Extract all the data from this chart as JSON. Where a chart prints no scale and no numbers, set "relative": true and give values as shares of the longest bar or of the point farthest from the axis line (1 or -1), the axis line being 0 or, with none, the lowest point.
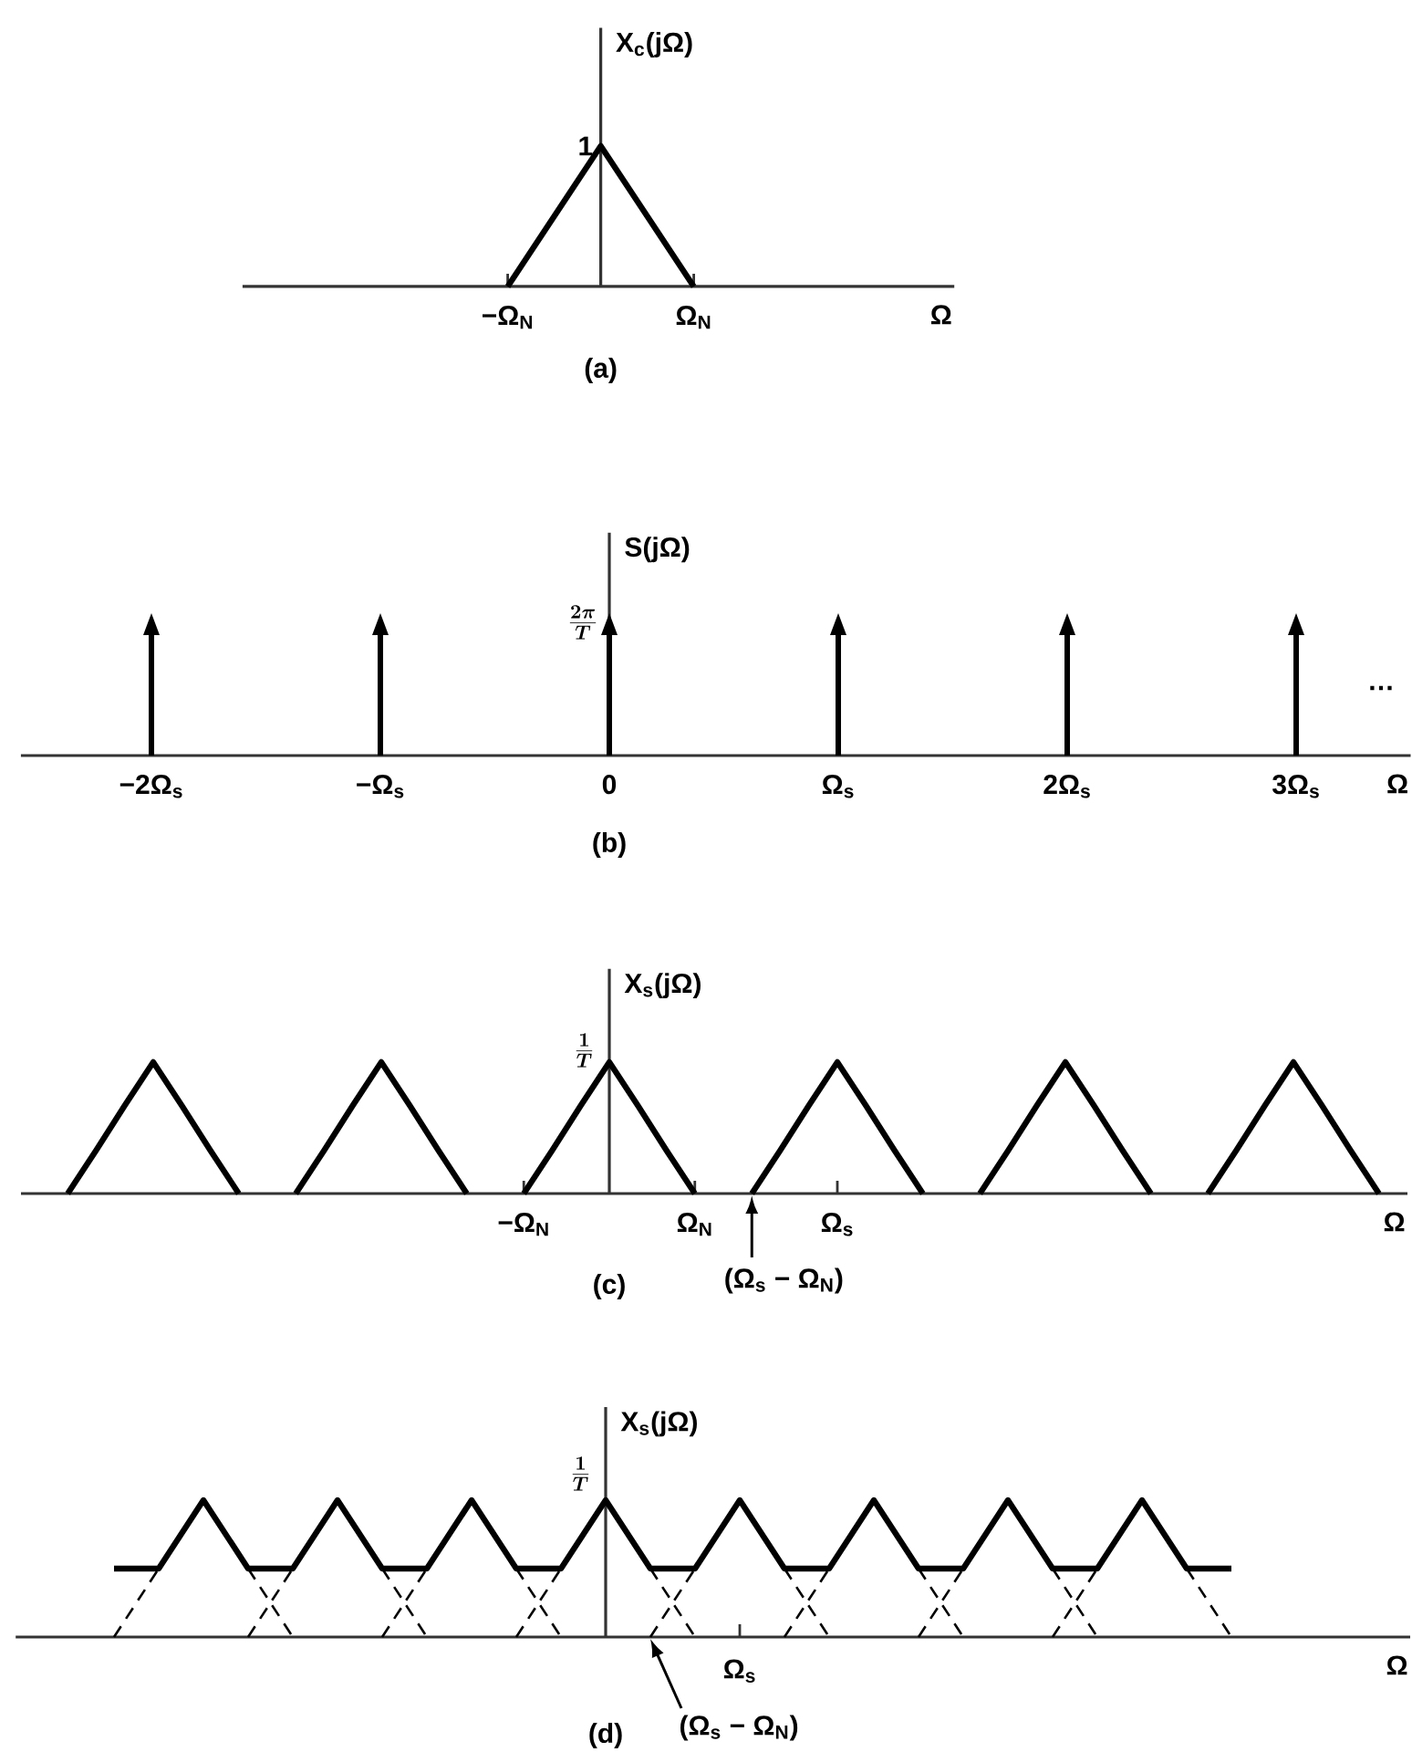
{
  "chart_data": [
    {
      "type": "line",
      "title": "(a)",
      "xlabel": "Ω",
      "ylabel": "X$_{c}$(jΩ)",
      "relative": true,
      "categories": [
        null,
        null,
        "−Ω$_{N}$",
        null,
        "Ω$_{N}$",
        null,
        null
      ],
      "values": [
        null,
        null,
        0,
        1,
        0,
        null,
        null
      ],
      "color": "#000000",
      "annotations": [
        "1"
      ]
    },
    {
      "type": "bar",
      "title": "(b)",
      "xlabel": "Ω",
      "ylabel": "S(jΩ)",
      "relative": true,
      "categories": [
        "−2Ω$_{s}$",
        "−Ω$_{s}$",
        "0",
        "Ω$_{s}$",
        "2Ω$_{s}$",
        "3Ω$_{s}$"
      ],
      "values": [
        1,
        1,
        1,
        1,
        1,
        1
      ],
      "color": "#000000",
      "annotations": [
        "\\frac{2\\pi}{T}",
        "…"
      ]
    },
    {
      "type": "line",
      "title": "(c)",
      "xlabel": "Ω",
      "ylabel": "X$_{s}$(jΩ)",
      "relative": true,
      "categories": [
        null,
        null,
        null,
        null,
        null,
        null,
        null,
        null,
        null,
        null,
        null,
        null,
        null,
        null,
        null,
        null,
        "−Ω$_{N}$",
        null,
        null,
        null,
        null,
        null,
        "Ω$_{N}$",
        null,
        null,
        null,
        null,
        "Ω$_{s}$",
        null,
        null,
        null,
        null,
        null,
        null,
        null,
        null,
        null,
        null,
        null,
        null,
        null,
        null,
        null,
        null,
        null,
        null,
        null
      ],
      "values": [
        0,
        0.33,
        0.67,
        1,
        0.67,
        0.33,
        0,
        null,
        0,
        0.33,
        0.67,
        1,
        0.67,
        0.33,
        0,
        null,
        0,
        0.33,
        0.67,
        1,
        0.67,
        0.33,
        0,
        null,
        0,
        0.33,
        0.67,
        1,
        0.67,
        0.33,
        0,
        null,
        0,
        0.33,
        0.67,
        1,
        0.67,
        0.33,
        0,
        null,
        0,
        0.33,
        0.67,
        1,
        0.67,
        0.33,
        0
      ],
      "color": "#000000",
      "annotations": [
        "\\frac{1}{T}",
        "(Ω$_{s}$ − Ω$_{N}$)"
      ]
    },
    {
      "type": "line",
      "title": "(d)",
      "xlabel": "Ω",
      "ylabel": "X$_{s}$(jΩ)",
      "relative": true,
      "categories": [
        null,
        null,
        null,
        null,
        null,
        null,
        null,
        null,
        null,
        null,
        null,
        null,
        null,
        null,
        null,
        null,
        null,
        null,
        null,
        null,
        null,
        null,
        null,
        null,
        null,
        null
      ],
      "series": [
        {
          "color": "#000000",
          "values": [
            0.5,
            0.5,
            1,
            0.5,
            0.5,
            1,
            0.5,
            0.5,
            1,
            0.5,
            0.5,
            1,
            0.5,
            0.5,
            1,
            0.5,
            0.5,
            1,
            0.5,
            0.5,
            1,
            0.5,
            0.5,
            1,
            0.5,
            0.5
          ]
        },
        {
          "color": "#000000",
          "line_style": "dashed",
          "values": [
            null,
            null,
            null,
            0,
            0.5,
            null,
            0.5,
            0,
            null,
            0,
            0.5,
            null,
            0.5,
            0,
            null,
            0,
            0.5,
            null,
            0.5,
            0,
            null,
            0,
            0.5,
            null,
            0.5,
            0
          ]
        },
        {
          "color": "#000000",
          "line_style": "dashed",
          "values": [
            0,
            0.5,
            null,
            0.5,
            0,
            null,
            0,
            0.5,
            null,
            0.5,
            0,
            null,
            0,
            0.5,
            null,
            0.5,
            0,
            null,
            0,
            0.5,
            null,
            0.5,
            0,
            null,
            null,
            null
          ]
        }
      ],
      "annotations": [
        "\\frac{1}{T}",
        "Ω$_{s}$",
        "(Ω$_{s}$ − Ω$_{N}$)"
      ]
    }
  ]
}
